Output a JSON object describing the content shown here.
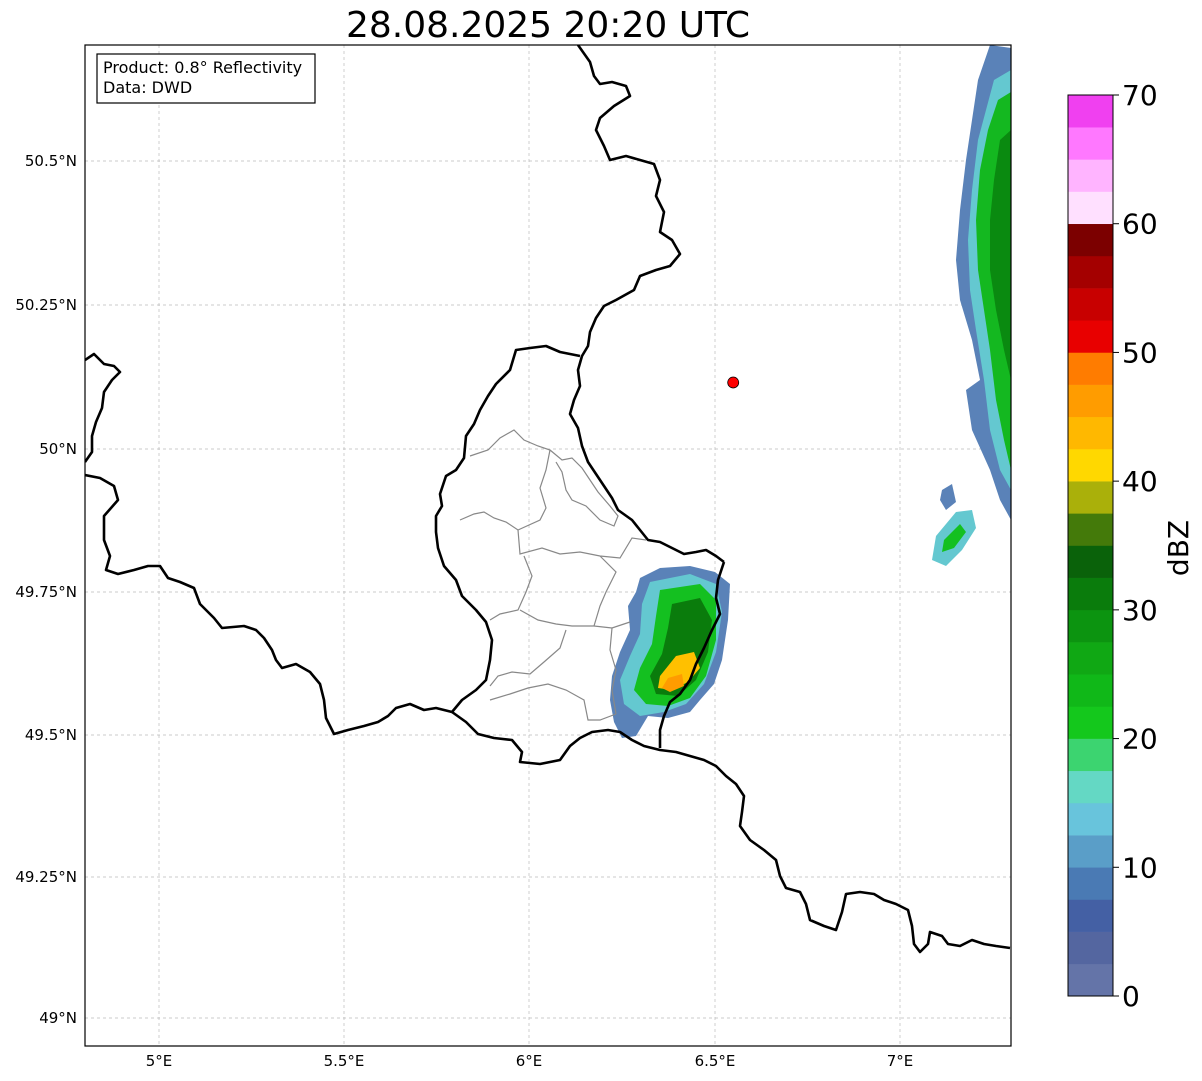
{
  "title": "28.08.2025 20:20 UTC",
  "info": {
    "product": "Product: 0.8° Reflectivity",
    "data": "Data: DWD"
  },
  "map": {
    "lon_range": [
      4.8,
      7.3
    ],
    "lat_range": [
      48.95,
      50.7
    ],
    "x_ticks": [
      "5°E",
      "5.5°E",
      "6°E",
      "6.5°E",
      "7°E"
    ],
    "y_ticks": [
      "50.5°N",
      "50.25°N",
      "50°N",
      "49.75°N",
      "49.5°N",
      "49.25°N",
      "49°N"
    ],
    "grid": true,
    "marker": {
      "lon": 6.55,
      "lat": 50.11,
      "color": "#ff0000"
    }
  },
  "colorbar": {
    "label": "dBZ",
    "ticks": [
      "0",
      "10",
      "20",
      "30",
      "40",
      "50",
      "60",
      "70"
    ],
    "range": [
      0,
      70
    ],
    "step": 2.5,
    "colors": [
      "#6474a8",
      "#5466a0",
      "#4460a4",
      "#4a7ab4",
      "#5a9ec8",
      "#68c4dc",
      "#64d8c4",
      "#3cd470",
      "#14c81c",
      "#10b818",
      "#10a814",
      "#0c9410",
      "#0a7c0c",
      "#0a620a",
      "#447a0a",
      "#aab00a",
      "#ffd800",
      "#ffb800",
      "#ff9c00",
      "#ff7c00",
      "#e80000",
      "#c80000",
      "#a40000",
      "#7c0000",
      "#ffe0ff",
      "#ffb4ff",
      "#ff78ff",
      "#f040f0"
    ]
  }
}
